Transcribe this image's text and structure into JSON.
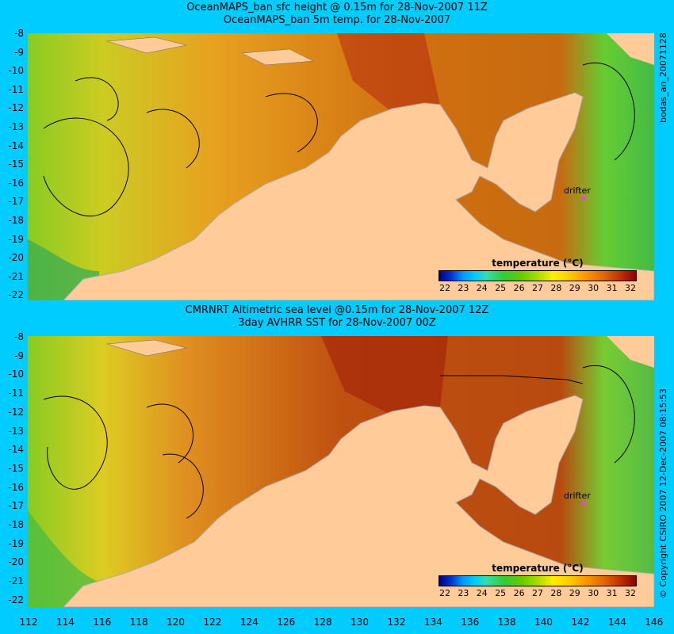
{
  "top": {
    "title_line1": "OceanMAPS_ban sfc height @ 0.15m for 28-Nov-2007 11Z",
    "title_line2": "OceanMAPS_ban 5m temp. for 28-Nov-2007",
    "side_label": "bodas_an_20071128"
  },
  "bottom": {
    "title_line1": "CMRNRT Altimetric sea level  @0.15m  for 28-Nov-2007 12Z",
    "title_line2": "3day AVHRR SST for 28-Nov-2007 00Z",
    "side_label": "© Copyright CSIRO 2007  12-Dec-2007 08:15:53"
  },
  "drifter_label": "drifter",
  "legend": {
    "title": "temperature (°C)",
    "ticks": [
      "22",
      "23",
      "24",
      "25",
      "26",
      "27",
      "28",
      "29",
      "30",
      "31",
      "32"
    ]
  },
  "y_ticks": [
    "-8",
    "-9",
    "-10",
    "-11",
    "-12",
    "-13",
    "-14",
    "-15",
    "-16",
    "-17",
    "-18",
    "-19",
    "-20",
    "-21",
    "-22"
  ],
  "x_ticks": [
    "112",
    "114",
    "116",
    "118",
    "120",
    "122",
    "124",
    "126",
    "128",
    "130",
    "132",
    "134",
    "136",
    "138",
    "140",
    "142",
    "144",
    "146"
  ],
  "colors": {
    "background": "#00ccff",
    "land": "#ffcc99",
    "drifter": "#ff33ff"
  }
}
